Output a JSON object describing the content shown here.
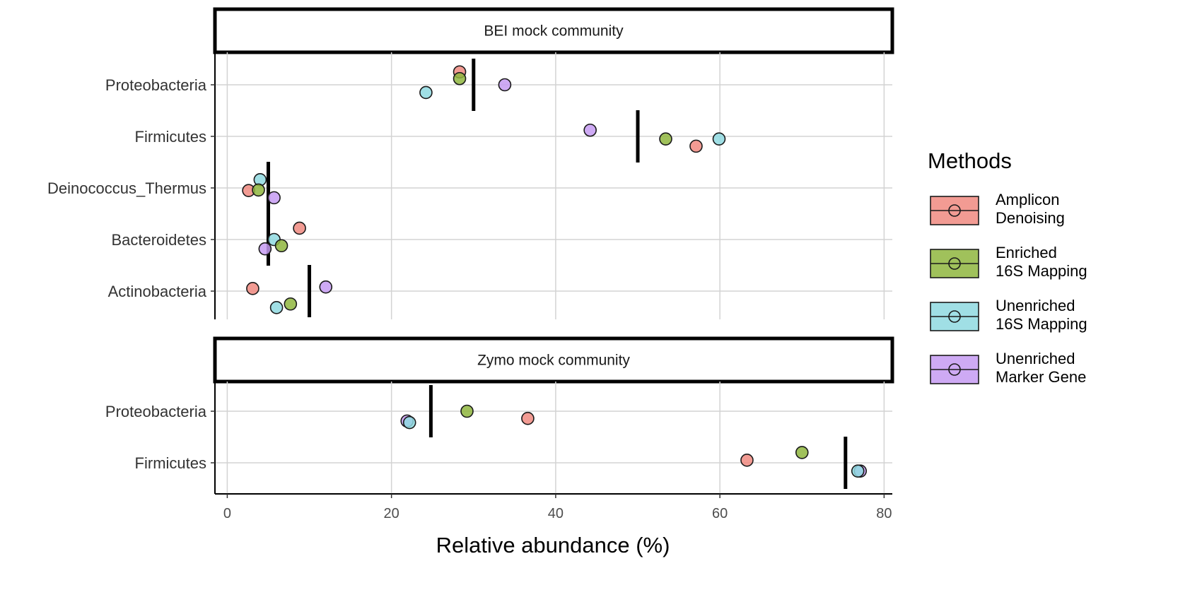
{
  "chart_data": {
    "type": "scatter",
    "xlabel": "Relative abundance (%)",
    "xlim": [
      -1.5,
      81
    ],
    "x_ticks": [
      0,
      20,
      40,
      60,
      80
    ],
    "grid": true,
    "legend": {
      "title": "Methods",
      "position": "right",
      "entries": [
        {
          "key": "amplicon",
          "lines": [
            "Amplicon",
            "Denoising"
          ],
          "color": "#F08A80"
        },
        {
          "key": "enriched",
          "lines": [
            "Enriched",
            "16S Mapping"
          ],
          "color": "#8FB63E"
        },
        {
          "key": "unenriched16s",
          "lines": [
            "Unenriched",
            "16S Mapping"
          ],
          "color": "#8FD9E0"
        },
        {
          "key": "marker",
          "lines": [
            "Unenriched",
            "Marker Gene"
          ],
          "color": "#C59BF2"
        }
      ]
    },
    "panels": [
      {
        "title": "BEI mock community",
        "categories": [
          "Proteobacteria",
          "Firmicutes",
          "Deinococcus_Thermus",
          "Bacteroidetes",
          "Actinobacteria"
        ],
        "expected": [
          30,
          50,
          5,
          5,
          10
        ],
        "points": [
          {
            "category": "Proteobacteria",
            "method": "amplicon",
            "value": 28.3,
            "jitter": 0.25
          },
          {
            "category": "Proteobacteria",
            "method": "enriched",
            "value": 28.3,
            "jitter": 0.12
          },
          {
            "category": "Proteobacteria",
            "method": "unenriched16s",
            "value": 24.2,
            "jitter": -0.15
          },
          {
            "category": "Proteobacteria",
            "method": "marker",
            "value": 33.8,
            "jitter": 0.0
          },
          {
            "category": "Firmicutes",
            "method": "marker",
            "value": 44.2,
            "jitter": 0.12
          },
          {
            "category": "Firmicutes",
            "method": "enriched",
            "value": 53.4,
            "jitter": -0.05
          },
          {
            "category": "Firmicutes",
            "method": "amplicon",
            "value": 57.1,
            "jitter": -0.19
          },
          {
            "category": "Firmicutes",
            "method": "unenriched16s",
            "value": 59.9,
            "jitter": -0.05
          },
          {
            "category": "Deinococcus_Thermus",
            "method": "unenriched16s",
            "value": 4.0,
            "jitter": 0.16
          },
          {
            "category": "Deinococcus_Thermus",
            "method": "amplicon",
            "value": 2.6,
            "jitter": -0.05
          },
          {
            "category": "Deinococcus_Thermus",
            "method": "enriched",
            "value": 3.8,
            "jitter": -0.04
          },
          {
            "category": "Deinococcus_Thermus",
            "method": "marker",
            "value": 5.7,
            "jitter": -0.19
          },
          {
            "category": "Bacteroidetes",
            "method": "amplicon",
            "value": 8.8,
            "jitter": 0.22
          },
          {
            "category": "Bacteroidetes",
            "method": "unenriched16s",
            "value": 5.7,
            "jitter": 0.0
          },
          {
            "category": "Bacteroidetes",
            "method": "enriched",
            "value": 6.6,
            "jitter": -0.12
          },
          {
            "category": "Bacteroidetes",
            "method": "marker",
            "value": 4.6,
            "jitter": -0.18
          },
          {
            "category": "Actinobacteria",
            "method": "marker",
            "value": 12.0,
            "jitter": 0.08
          },
          {
            "category": "Actinobacteria",
            "method": "amplicon",
            "value": 3.1,
            "jitter": 0.05
          },
          {
            "category": "Actinobacteria",
            "method": "enriched",
            "value": 7.7,
            "jitter": -0.25
          },
          {
            "category": "Actinobacteria",
            "method": "unenriched16s",
            "value": 6.0,
            "jitter": -0.32
          }
        ]
      },
      {
        "title": "Zymo mock community",
        "categories": [
          "Proteobacteria",
          "Firmicutes"
        ],
        "expected": [
          24.8,
          75.3
        ],
        "points": [
          {
            "category": "Proteobacteria",
            "method": "enriched",
            "value": 29.2,
            "jitter": 0.0
          },
          {
            "category": "Proteobacteria",
            "method": "amplicon",
            "value": 36.6,
            "jitter": -0.14
          },
          {
            "category": "Proteobacteria",
            "method": "marker",
            "value": 21.9,
            "jitter": -0.19
          },
          {
            "category": "Proteobacteria",
            "method": "unenriched16s",
            "value": 22.2,
            "jitter": -0.22
          },
          {
            "category": "Firmicutes",
            "method": "enriched",
            "value": 70.0,
            "jitter": 0.2
          },
          {
            "category": "Firmicutes",
            "method": "amplicon",
            "value": 63.3,
            "jitter": 0.05
          },
          {
            "category": "Firmicutes",
            "method": "marker",
            "value": 77.1,
            "jitter": -0.16
          },
          {
            "category": "Firmicutes",
            "method": "unenriched16s",
            "value": 76.8,
            "jitter": -0.16
          }
        ]
      }
    ]
  }
}
